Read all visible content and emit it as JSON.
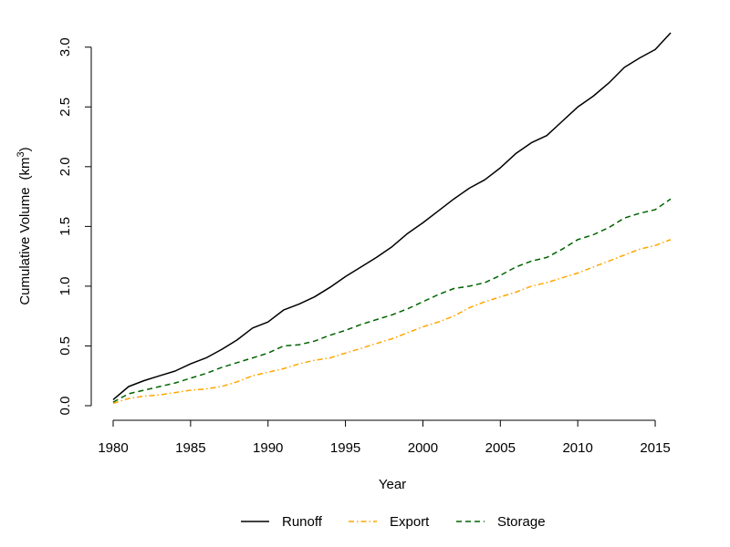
{
  "chart_data": {
    "type": "line",
    "title": "",
    "xlabel": "Year",
    "ylabel_main": "Cumulative Volume",
    "ylabel_unit_prefix": "(km",
    "ylabel_unit_exp": "3",
    "ylabel_unit_suffix": ")",
    "xlim": [
      1980,
      2016
    ],
    "ylim": [
      0,
      3.12
    ],
    "x_ticks": [
      1980,
      1985,
      1990,
      1995,
      2000,
      2005,
      2010,
      2015
    ],
    "x_tick_labels": [
      "1980",
      "1985",
      "1990",
      "1995",
      "2000",
      "2005",
      "2010",
      "2015"
    ],
    "y_ticks": [
      0,
      0.5,
      1.0,
      1.5,
      2.0,
      2.5,
      3.0
    ],
    "y_tick_labels": [
      "0.0",
      "0.5",
      "1.0",
      "1.5",
      "2.0",
      "2.5",
      "3.0"
    ],
    "grid": false,
    "legend_position": "bottom",
    "x": [
      1980,
      1981,
      1982,
      1983,
      1984,
      1985,
      1986,
      1987,
      1988,
      1989,
      1990,
      1991,
      1992,
      1993,
      1994,
      1995,
      1996,
      1997,
      1998,
      1999,
      2000,
      2001,
      2002,
      2003,
      2004,
      2005,
      2006,
      2007,
      2008,
      2009,
      2010,
      2011,
      2012,
      2013,
      2014,
      2015,
      2016
    ],
    "series": [
      {
        "name": "Runoff",
        "color": "#000000",
        "dash": "solid",
        "values": [
          0.05,
          0.16,
          0.21,
          0.25,
          0.29,
          0.35,
          0.4,
          0.47,
          0.55,
          0.65,
          0.7,
          0.8,
          0.85,
          0.91,
          0.99,
          1.08,
          1.16,
          1.24,
          1.33,
          1.44,
          1.53,
          1.63,
          1.73,
          1.82,
          1.89,
          1.99,
          2.11,
          2.2,
          2.26,
          2.38,
          2.5,
          2.59,
          2.7,
          2.83,
          2.91,
          2.98,
          3.12
        ]
      },
      {
        "name": "Export",
        "color": "#FFA500",
        "dash": "dashdot",
        "values": [
          0.02,
          0.06,
          0.08,
          0.09,
          0.11,
          0.13,
          0.14,
          0.16,
          0.2,
          0.25,
          0.28,
          0.31,
          0.35,
          0.38,
          0.4,
          0.44,
          0.48,
          0.52,
          0.56,
          0.61,
          0.66,
          0.7,
          0.75,
          0.82,
          0.87,
          0.91,
          0.95,
          1.0,
          1.03,
          1.07,
          1.11,
          1.16,
          1.21,
          1.26,
          1.31,
          1.34,
          1.39
        ]
      },
      {
        "name": "Storage",
        "color": "#006400",
        "dash": "dashed",
        "values": [
          0.03,
          0.1,
          0.13,
          0.16,
          0.19,
          0.23,
          0.27,
          0.32,
          0.36,
          0.4,
          0.44,
          0.5,
          0.51,
          0.54,
          0.59,
          0.63,
          0.68,
          0.72,
          0.76,
          0.81,
          0.87,
          0.93,
          0.98,
          1.0,
          1.03,
          1.09,
          1.16,
          1.21,
          1.24,
          1.31,
          1.39,
          1.43,
          1.49,
          1.57,
          1.61,
          1.64,
          1.73
        ]
      }
    ]
  }
}
